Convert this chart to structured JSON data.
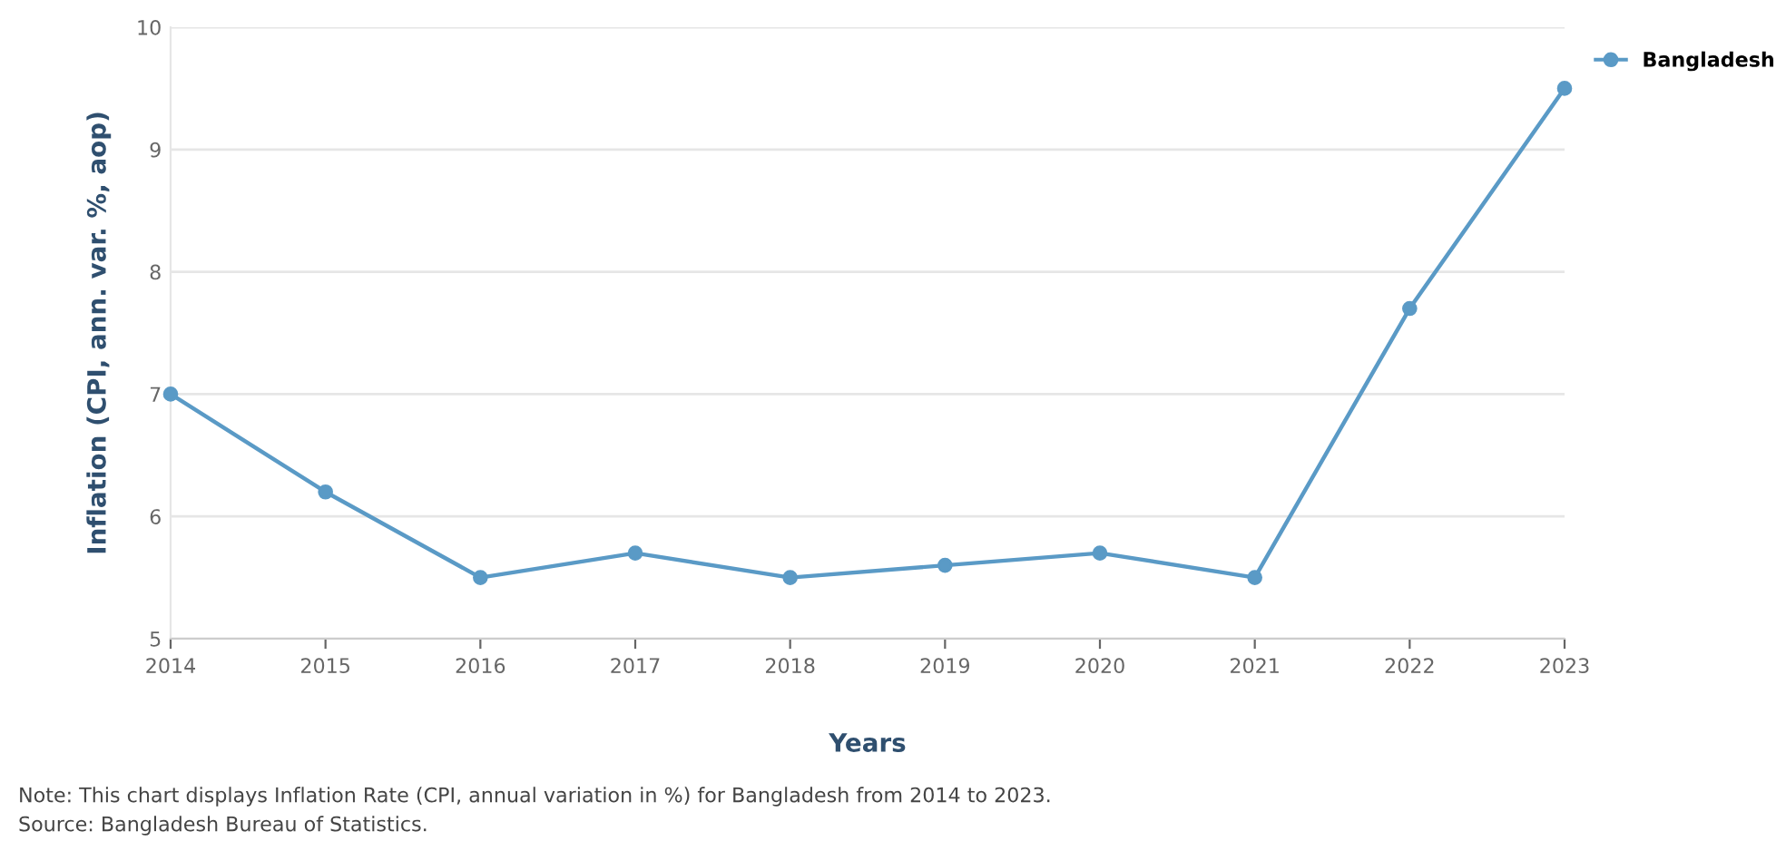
{
  "chart_data": {
    "type": "line",
    "xlabel": "Years",
    "ylabel": "Inflation (CPI, ann. var. %, aop)",
    "x": [
      2014,
      2015,
      2016,
      2017,
      2018,
      2019,
      2020,
      2021,
      2022,
      2023
    ],
    "series": [
      {
        "name": "Bangladesh",
        "color": "#5a9ac6",
        "values": [
          7.0,
          6.2,
          5.5,
          5.7,
          5.5,
          5.6,
          5.7,
          5.5,
          7.7,
          9.5
        ]
      }
    ],
    "xlim": [
      2014,
      2023
    ],
    "xticks": [
      2014,
      2015,
      2016,
      2017,
      2018,
      2019,
      2020,
      2021,
      2022,
      2023
    ],
    "ylim": [
      5,
      10
    ],
    "yticks": [
      5,
      6,
      7,
      8,
      9,
      10
    ],
    "grid": "y",
    "legend": "top right",
    "marker": "circle",
    "line_style": "solid",
    "annotations": [
      "Note: This chart displays Inflation Rate (CPI, annual variation in %) for Bangladesh from 2014 to 2023.",
      "Source: Bangladesh Bureau of Statistics."
    ]
  }
}
